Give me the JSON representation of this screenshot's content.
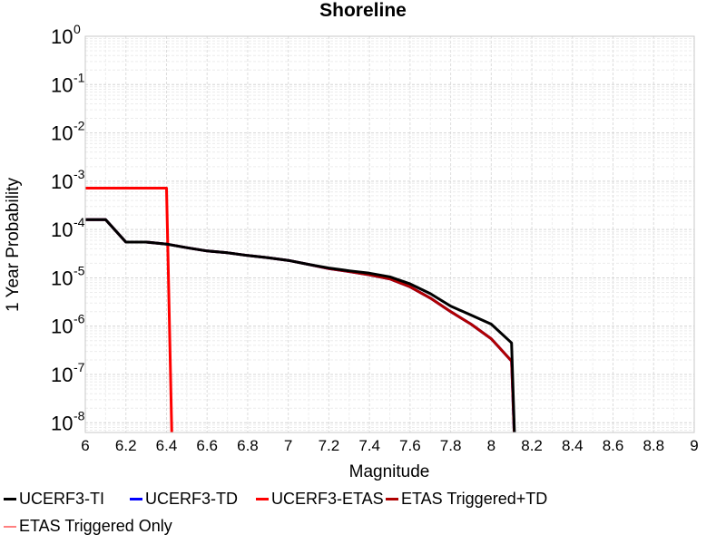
{
  "chart_data": {
    "type": "line",
    "title": "Shoreline",
    "xlabel": "Magnitude",
    "ylabel": "1 Year Probability",
    "x_scale": "linear",
    "y_scale": "log",
    "xlim": [
      6,
      9
    ],
    "ylim": [
      6.3e-09,
      1
    ],
    "x_ticks": [
      "6",
      "6.2",
      "6.4",
      "6.6",
      "6.8",
      "7",
      "7.2",
      "7.4",
      "7.6",
      "7.8",
      "8",
      "8.2",
      "8.4",
      "8.6",
      "8.8",
      "9"
    ],
    "y_ticks": [
      {
        "base": "10",
        "exp": "0"
      },
      {
        "base": "10",
        "exp": "-1"
      },
      {
        "base": "10",
        "exp": "-2"
      },
      {
        "base": "10",
        "exp": "-3"
      },
      {
        "base": "10",
        "exp": "-4"
      },
      {
        "base": "10",
        "exp": "-5"
      },
      {
        "base": "10",
        "exp": "-6"
      },
      {
        "base": "10",
        "exp": "-7"
      },
      {
        "base": "10",
        "exp": "-8"
      }
    ],
    "grid": true,
    "legend_position": "bottom",
    "series": [
      {
        "name": "UCERF3-TI",
        "color": "#000000",
        "x": [
          6.0,
          6.1,
          6.2,
          6.3,
          6.4,
          6.5,
          6.6,
          6.7,
          6.8,
          6.9,
          7.0,
          7.1,
          7.2,
          7.3,
          7.4,
          7.5,
          7.6,
          7.7,
          7.8,
          7.9,
          8.0,
          8.1,
          8.12
        ],
        "y": [
          0.00016,
          0.00016,
          5.5e-05,
          5.5e-05,
          5e-05,
          4.2e-05,
          3.6e-05,
          3.3e-05,
          2.9e-05,
          2.6e-05,
          2.3e-05,
          1.9e-05,
          1.6e-05,
          1.4e-05,
          1.25e-05,
          1.05e-05,
          7.5e-06,
          4.7e-06,
          2.6e-06,
          1.7e-06,
          1.1e-06,
          4.5e-07,
          1e-09
        ]
      },
      {
        "name": "UCERF3-TD",
        "color": "#0000ff",
        "x": [
          6.0,
          6.1,
          6.2,
          6.3,
          6.4,
          6.5,
          6.6,
          6.7,
          6.8,
          6.9,
          7.0,
          7.1,
          7.2,
          7.3,
          7.4,
          7.5,
          7.6,
          7.7,
          7.8,
          7.9,
          8.0,
          8.1,
          8.12
        ],
        "y": [
          0.00016,
          0.00016,
          5.5e-05,
          5.5e-05,
          5e-05,
          4.2e-05,
          3.6e-05,
          3.3e-05,
          2.9e-05,
          2.6e-05,
          2.3e-05,
          1.9e-05,
          1.55e-05,
          1.35e-05,
          1.15e-05,
          9.5e-06,
          6.5e-06,
          3.8e-06,
          2e-06,
          1.1e-06,
          5.5e-07,
          1.9e-07,
          1e-09
        ]
      },
      {
        "name": "UCERF3-ETAS",
        "color": "#ff0000",
        "x": [
          6.0,
          6.1,
          6.2,
          6.3,
          6.4,
          6.43
        ],
        "y": [
          0.00072,
          0.00072,
          0.00072,
          0.00072,
          0.00072,
          1e-09
        ]
      },
      {
        "name": "ETAS Triggered+TD",
        "color": "#b00000",
        "x": [
          6.0,
          6.1,
          6.2,
          6.3,
          6.4,
          6.5,
          6.6,
          6.7,
          6.8,
          6.9,
          7.0,
          7.1,
          7.2,
          7.3,
          7.4,
          7.5,
          7.6,
          7.7,
          7.8,
          7.9,
          8.0,
          8.1,
          8.12
        ],
        "y": [
          0.00016,
          0.00016,
          5.5e-05,
          5.5e-05,
          5e-05,
          4.2e-05,
          3.6e-05,
          3.3e-05,
          2.9e-05,
          2.6e-05,
          2.3e-05,
          1.9e-05,
          1.55e-05,
          1.35e-05,
          1.15e-05,
          9.5e-06,
          6.5e-06,
          3.8e-06,
          2e-06,
          1.1e-06,
          5.5e-07,
          1.9e-07,
          1e-09
        ]
      },
      {
        "name": "ETAS Triggered Only",
        "color": "#ff8080",
        "x": [],
        "y": []
      }
    ]
  }
}
